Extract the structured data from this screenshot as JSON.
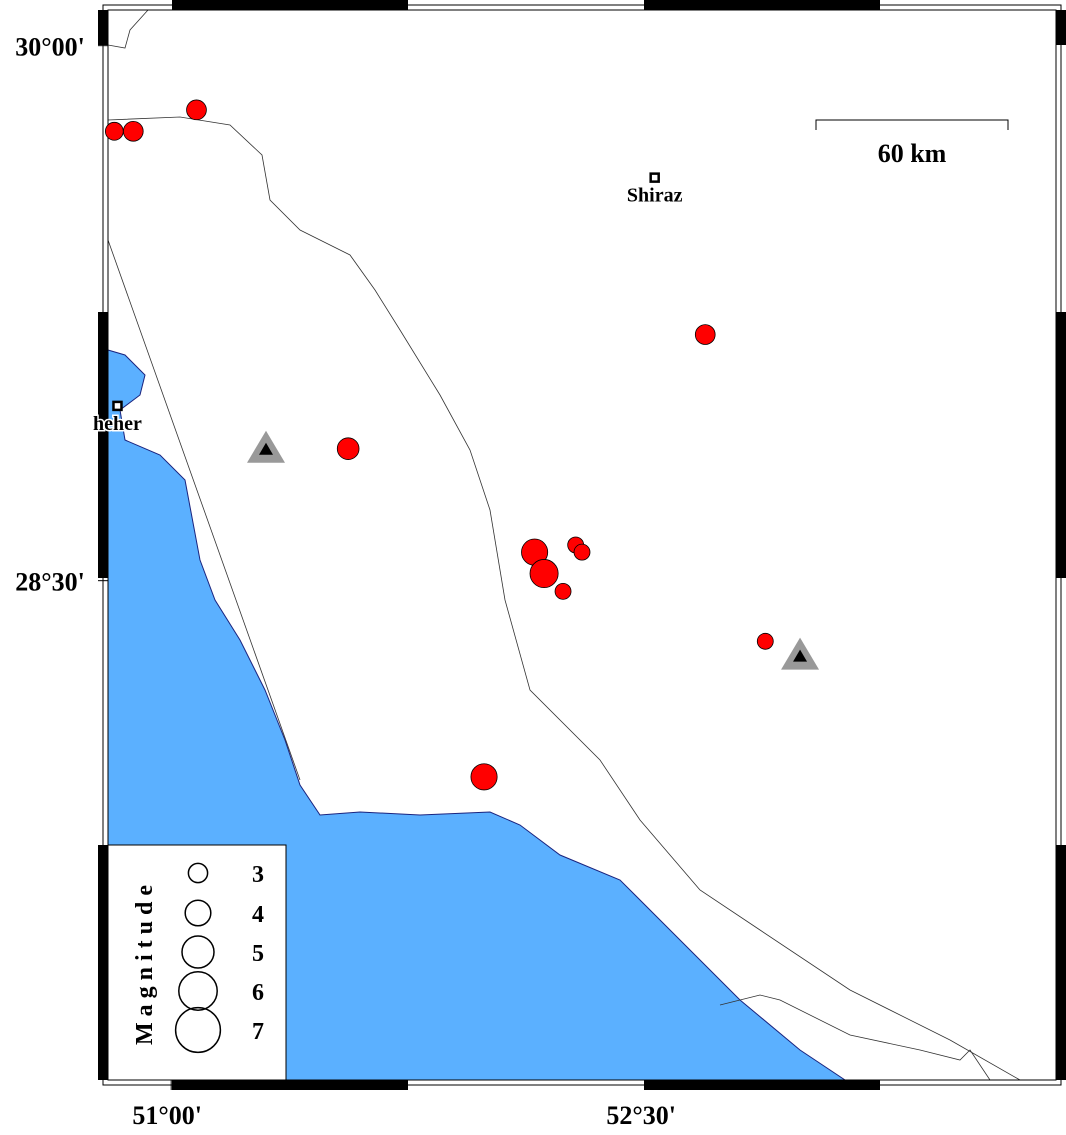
{
  "chart_data": {
    "type": "map",
    "xlim": [
      50.8,
      53.8
    ],
    "ylim": [
      27.1,
      30.1
    ],
    "xticks": [
      {
        "value": 51,
        "label": "51°00'"
      },
      {
        "value": 52.5,
        "label": "52°30'"
      }
    ],
    "yticks": [
      {
        "value": 30,
        "label": "30°00'"
      },
      {
        "value": 28.5,
        "label": "28°30'"
      }
    ],
    "series": [
      {
        "name": "events",
        "color": "#ff0000",
        "x": [
          50.82,
          50.88,
          51.08,
          52.69,
          51.56,
          52.15,
          52.18,
          52.28,
          52.3,
          52.24,
          52.88,
          51.99
        ],
        "y": [
          29.76,
          29.76,
          29.82,
          29.19,
          28.87,
          28.58,
          28.52,
          28.6,
          28.58,
          28.47,
          28.33,
          27.95
        ],
        "size": [
          2.8,
          3.1,
          3.1,
          3.1,
          3.4,
          4.1,
          4.4,
          2.5,
          2.5,
          2.5,
          2.5,
          4.1
        ]
      },
      {
        "name": "stations",
        "color": "#999999",
        "x": [
          51.3,
          52.99
        ],
        "y": [
          28.87,
          28.29
        ]
      }
    ],
    "cities": [
      {
        "label": "Shiraz",
        "x": 52.53,
        "y": 29.63
      },
      {
        "label": "heher",
        "x": 50.83,
        "y": 28.99
      }
    ],
    "scale_label": "60 km",
    "legend": {
      "title": "Magnitude",
      "values": [
        3,
        4,
        5,
        6,
        7
      ]
    }
  }
}
